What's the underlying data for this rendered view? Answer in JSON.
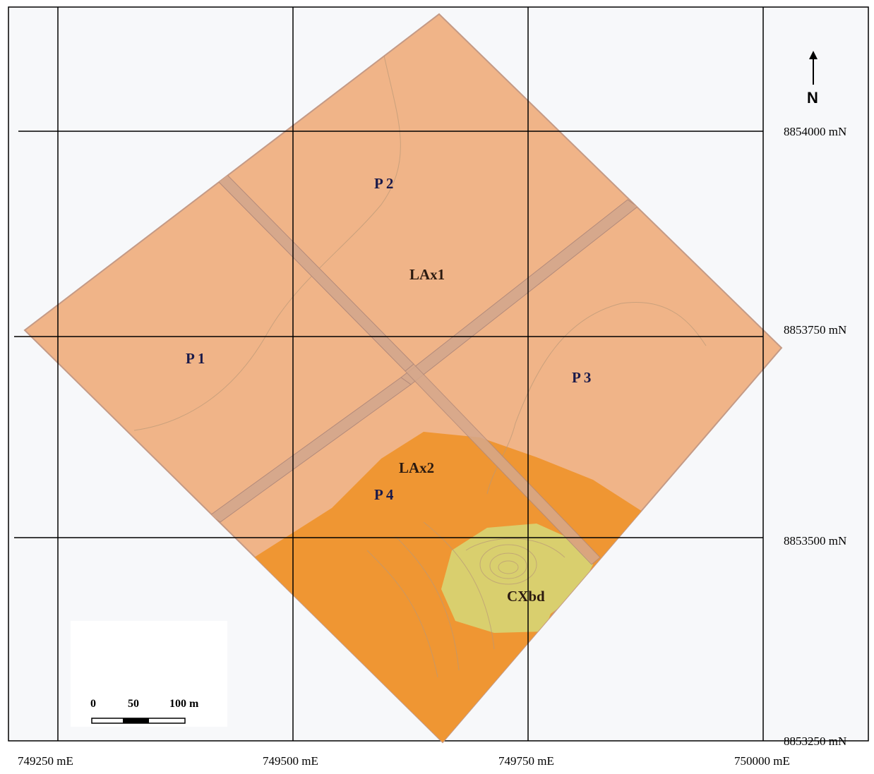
{
  "map": {
    "plots": [
      "P 1",
      "P 2",
      "P 3",
      "P 4"
    ],
    "soil_units": [
      "LAx1",
      "LAx2",
      "CXbd"
    ],
    "north_label": "N",
    "easting_labels": [
      "749250 mE",
      "749500 mE",
      "749750 mE",
      "750000 mE"
    ],
    "northing_labels": [
      "8854000 mN",
      "8853750 mN",
      "8853500 mN",
      "8853250 mN"
    ],
    "scale_bar": {
      "labels": [
        "0",
        "50",
        "100 m"
      ]
    },
    "colors": {
      "lax1_fill": "#f0b488",
      "lax2_fill": "#ef9633",
      "cxbd_fill": "#d9cf6e",
      "road_fill": "#d6a88c",
      "grid_line": "#000000"
    }
  }
}
